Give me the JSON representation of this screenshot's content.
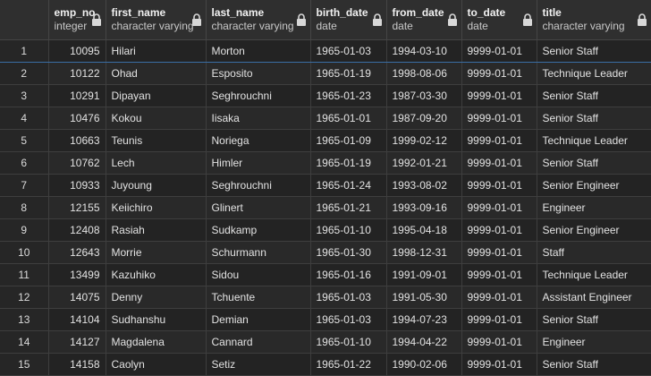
{
  "columns": [
    {
      "name": "emp_no",
      "type": "integer"
    },
    {
      "name": "first_name",
      "type": "character varying"
    },
    {
      "name": "last_name",
      "type": "character varying"
    },
    {
      "name": "birth_date",
      "type": "date"
    },
    {
      "name": "from_date",
      "type": "date"
    },
    {
      "name": "to_date",
      "type": "date"
    },
    {
      "name": "title",
      "type": "character varying"
    }
  ],
  "rows": [
    {
      "n": "1",
      "emp_no": "10095",
      "first_name": "Hilari",
      "last_name": "Morton",
      "birth_date": "1965-01-03",
      "from_date": "1994-03-10",
      "to_date": "9999-01-01",
      "title": "Senior Staff"
    },
    {
      "n": "2",
      "emp_no": "10122",
      "first_name": "Ohad",
      "last_name": "Esposito",
      "birth_date": "1965-01-19",
      "from_date": "1998-08-06",
      "to_date": "9999-01-01",
      "title": "Technique Leader"
    },
    {
      "n": "3",
      "emp_no": "10291",
      "first_name": "Dipayan",
      "last_name": "Seghrouchni",
      "birth_date": "1965-01-23",
      "from_date": "1987-03-30",
      "to_date": "9999-01-01",
      "title": "Senior Staff"
    },
    {
      "n": "4",
      "emp_no": "10476",
      "first_name": "Kokou",
      "last_name": "Iisaka",
      "birth_date": "1965-01-01",
      "from_date": "1987-09-20",
      "to_date": "9999-01-01",
      "title": "Senior Staff"
    },
    {
      "n": "5",
      "emp_no": "10663",
      "first_name": "Teunis",
      "last_name": "Noriega",
      "birth_date": "1965-01-09",
      "from_date": "1999-02-12",
      "to_date": "9999-01-01",
      "title": "Technique Leader"
    },
    {
      "n": "6",
      "emp_no": "10762",
      "first_name": "Lech",
      "last_name": "Himler",
      "birth_date": "1965-01-19",
      "from_date": "1992-01-21",
      "to_date": "9999-01-01",
      "title": "Senior Staff"
    },
    {
      "n": "7",
      "emp_no": "10933",
      "first_name": "Juyoung",
      "last_name": "Seghrouchni",
      "birth_date": "1965-01-24",
      "from_date": "1993-08-02",
      "to_date": "9999-01-01",
      "title": "Senior Engineer"
    },
    {
      "n": "8",
      "emp_no": "12155",
      "first_name": "Keiichiro",
      "last_name": "Glinert",
      "birth_date": "1965-01-21",
      "from_date": "1993-09-16",
      "to_date": "9999-01-01",
      "title": "Engineer"
    },
    {
      "n": "9",
      "emp_no": "12408",
      "first_name": "Rasiah",
      "last_name": "Sudkamp",
      "birth_date": "1965-01-10",
      "from_date": "1995-04-18",
      "to_date": "9999-01-01",
      "title": "Senior Engineer"
    },
    {
      "n": "10",
      "emp_no": "12643",
      "first_name": "Morrie",
      "last_name": "Schurmann",
      "birth_date": "1965-01-30",
      "from_date": "1998-12-31",
      "to_date": "9999-01-01",
      "title": "Staff"
    },
    {
      "n": "11",
      "emp_no": "13499",
      "first_name": "Kazuhiko",
      "last_name": "Sidou",
      "birth_date": "1965-01-16",
      "from_date": "1991-09-01",
      "to_date": "9999-01-01",
      "title": "Technique Leader"
    },
    {
      "n": "12",
      "emp_no": "14075",
      "first_name": "Denny",
      "last_name": "Tchuente",
      "birth_date": "1965-01-03",
      "from_date": "1991-05-30",
      "to_date": "9999-01-01",
      "title": "Assistant Engineer"
    },
    {
      "n": "13",
      "emp_no": "14104",
      "first_name": "Sudhanshu",
      "last_name": "Demian",
      "birth_date": "1965-01-03",
      "from_date": "1994-07-23",
      "to_date": "9999-01-01",
      "title": "Senior Staff"
    },
    {
      "n": "14",
      "emp_no": "14127",
      "first_name": "Magdalena",
      "last_name": "Cannard",
      "birth_date": "1965-01-10",
      "from_date": "1994-04-22",
      "to_date": "9999-01-01",
      "title": "Engineer"
    },
    {
      "n": "15",
      "emp_no": "14158",
      "first_name": "Caolyn",
      "last_name": "Setiz",
      "birth_date": "1965-01-22",
      "from_date": "1990-02-06",
      "to_date": "9999-01-01",
      "title": "Senior Staff"
    }
  ]
}
